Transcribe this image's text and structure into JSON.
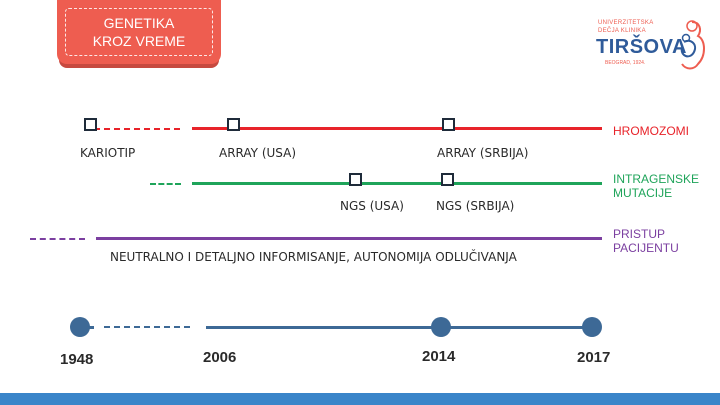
{
  "title": {
    "line1": "GENETIKA",
    "line2": "KROZ VREME"
  },
  "logo": {
    "line1": "UNIVERZITETSKA",
    "line2": "DEČJA KLINIKA",
    "name": "TIRŠOVA",
    "sub": "BEOGRAD, 1924."
  },
  "rows": {
    "hromozomi": {
      "label": "HROMOZOMI",
      "color": "#e8232a",
      "points": [
        "KARIOTIP",
        "ARRAY (USA)",
        "ARRAY (SRBIJA)"
      ]
    },
    "intragenske": {
      "label_line1": "INTRAGENSKE",
      "label_line2": "MUTACIJE",
      "color": "#1fa45a",
      "points": [
        "NGS (USA)",
        "NGS (SRBIJA)"
      ]
    },
    "pristup": {
      "label_line1": "PRISTUP",
      "label_line2": "PACIJENTU",
      "color": "#7b3fa0",
      "caption": "NEUTRALNO I DETALJNO INFORMISANJE, AUTONOMIJA ODLUČIVANJA"
    }
  },
  "timeline": {
    "color": "#3d6996",
    "years": [
      "1948",
      "2006",
      "2014",
      "2017"
    ]
  },
  "colors": {
    "title": "#ee5d50",
    "bottom_bar": "#3a85c9"
  }
}
